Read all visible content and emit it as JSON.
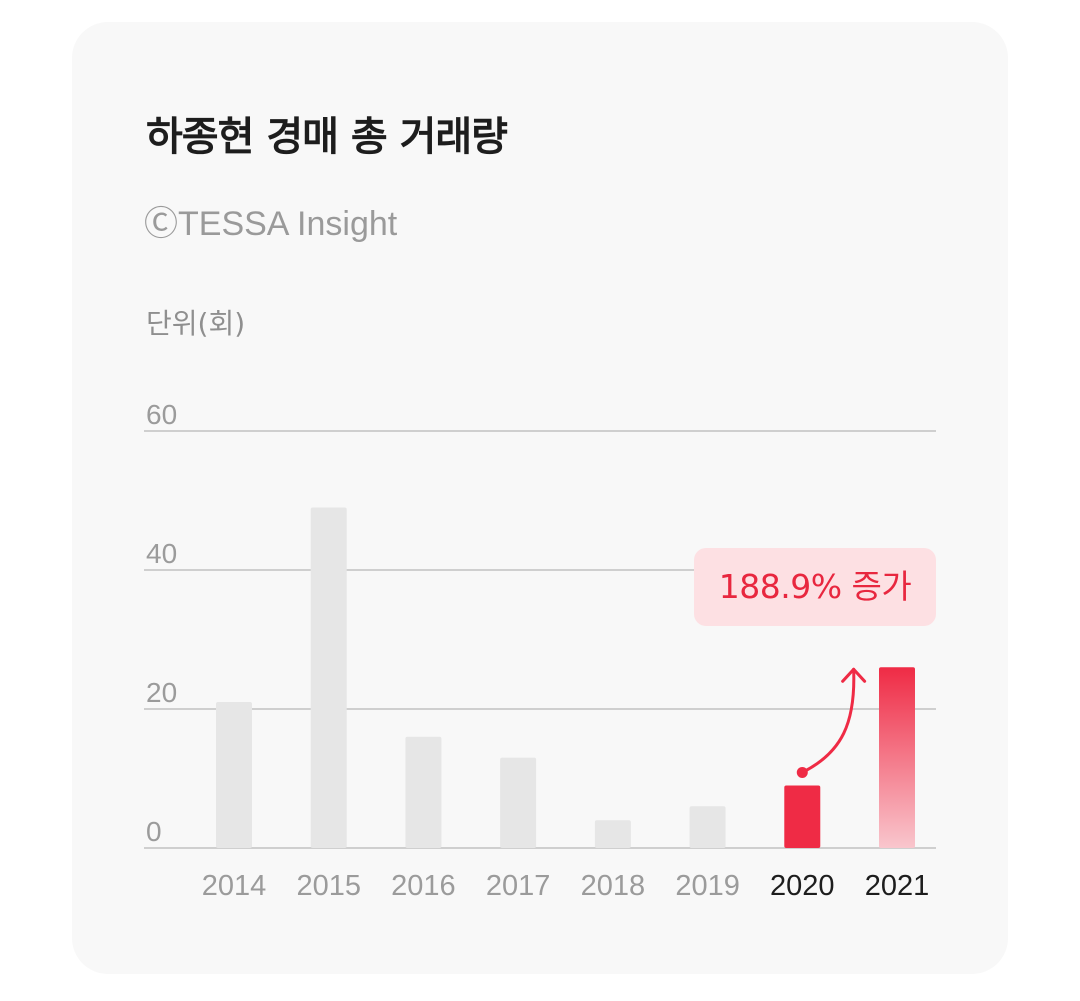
{
  "chart_data": {
    "type": "bar",
    "title": "하종현 경매 총 거래량",
    "source": "ⒸTESSA Insight",
    "ylabel": "단위(회)",
    "ylim": [
      0,
      60
    ],
    "yticks": [
      "0",
      "20",
      "40",
      "60"
    ],
    "categories": [
      "2014",
      "2015",
      "2016",
      "2017",
      "2018",
      "2019",
      "2020",
      "2021"
    ],
    "values": [
      21,
      49,
      16,
      13,
      4,
      6,
      9,
      26
    ],
    "highlight": [
      "2020",
      "2021"
    ],
    "annotation": {
      "text": "188.9% 증가",
      "from": "2020",
      "to": "2021"
    },
    "colors": {
      "bar": "#e6e6e6",
      "highlight": "#ef2b45",
      "highlight_fade": "#f9c6cd",
      "callout_bg": "#fde0e3",
      "callout_text": "#e8273f"
    }
  }
}
